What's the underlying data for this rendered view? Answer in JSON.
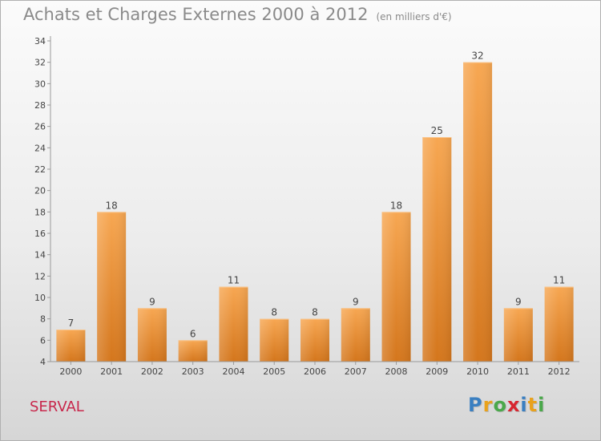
{
  "header": {
    "title": "Achats et Charges Externes 2000 à 2012",
    "unit": "(en milliers d'€)"
  },
  "footer": {
    "commune": "SERVAL",
    "brand_letters": [
      "P",
      "r",
      "o",
      "x",
      "i",
      "t",
      "i"
    ],
    "brand_colors": [
      "#3a7fc1",
      "#e9a21c",
      "#4aa84a",
      "#d7262f",
      "#3a7fc1",
      "#e9a21c",
      "#4aa84a"
    ]
  },
  "chart_data": {
    "type": "bar",
    "categories": [
      "2000",
      "2001",
      "2002",
      "2003",
      "2004",
      "2005",
      "2006",
      "2007",
      "2008",
      "2009",
      "2010",
      "2011",
      "2012"
    ],
    "values": [
      7,
      18,
      9,
      6,
      11,
      8,
      8,
      9,
      18,
      25,
      32,
      9,
      11
    ],
    "ylim": [
      4,
      34
    ],
    "yticks": [
      4,
      6,
      8,
      10,
      12,
      14,
      16,
      18,
      20,
      22,
      24,
      26,
      28,
      30,
      32,
      34
    ],
    "grid": false,
    "bar_color": "#ee8a2e"
  }
}
